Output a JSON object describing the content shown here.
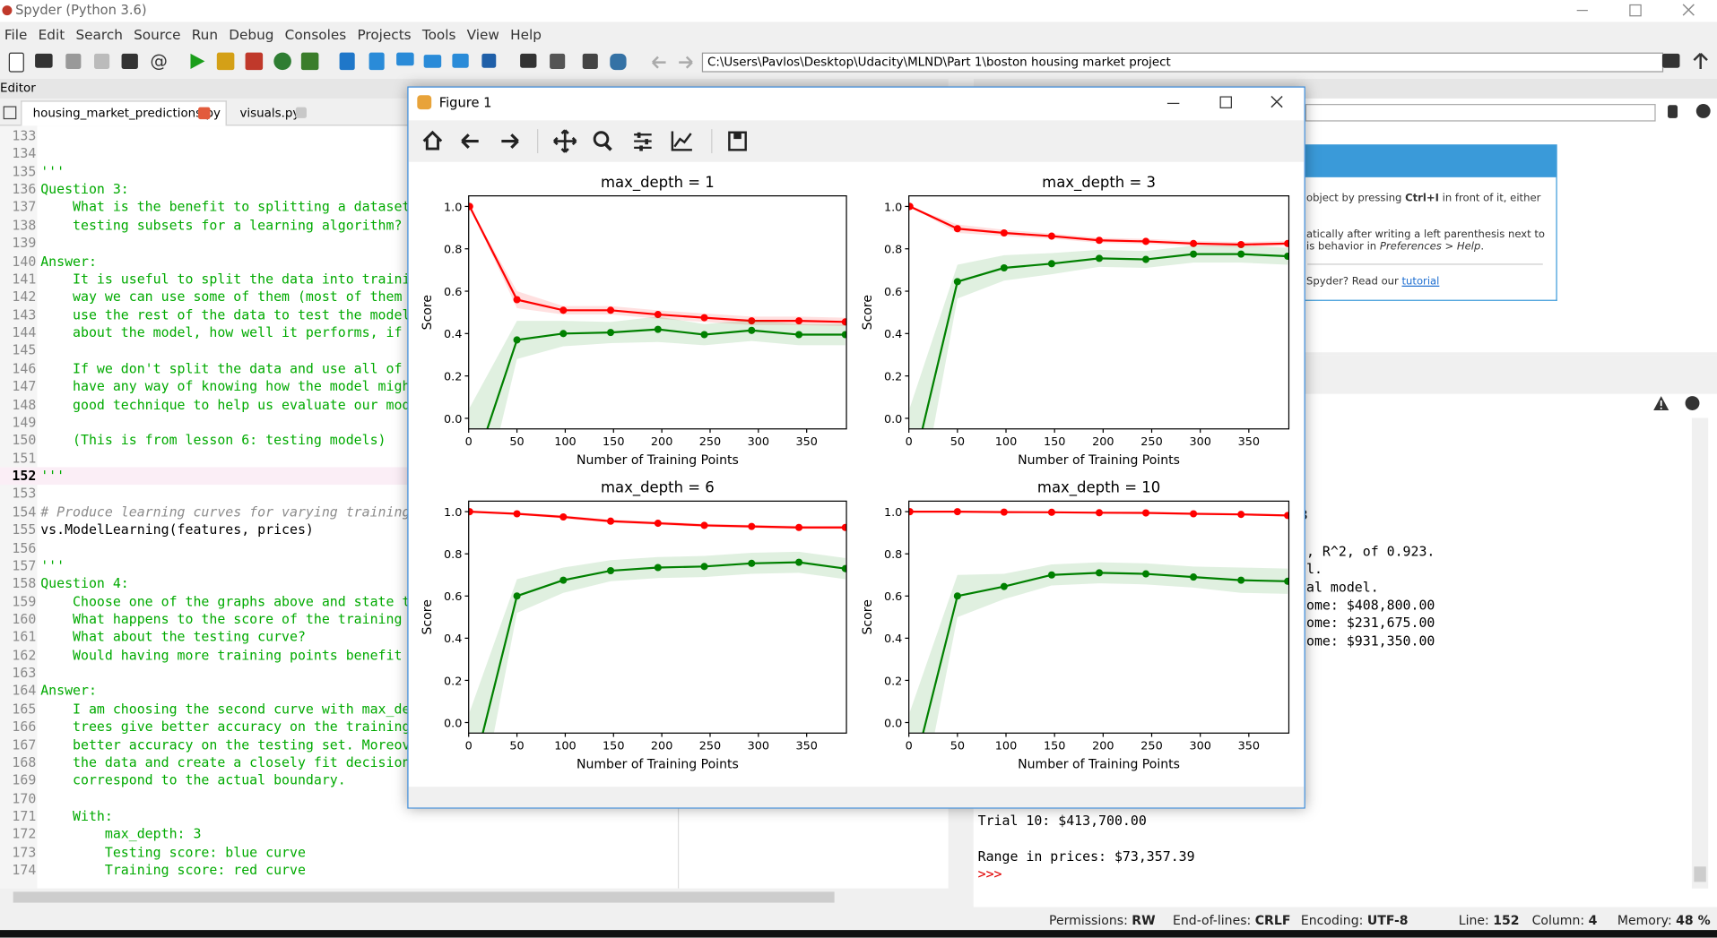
{
  "window": {
    "title": "Spyder (Python 3.6)"
  },
  "menu": [
    "File",
    "Edit",
    "Search",
    "Source",
    "Run",
    "Debug",
    "Consoles",
    "Projects",
    "Tools",
    "View",
    "Help"
  ],
  "toolbar": {
    "path": "C:\\Users\\Pavlos\\Desktop\\Udacity\\MLND\\Part 1\\boston housing market project"
  },
  "editor": {
    "label": "Editor",
    "tabs": [
      "housing_market_predictions.py",
      "visuals.py"
    ],
    "text_color": "#00aa00",
    "lines": [
      {
        "num": 133
      },
      {
        "num": 134
      },
      {
        "num": 135,
        "text": "'''"
      },
      {
        "num": 136,
        "text": "Question 3:"
      },
      {
        "num": 137,
        "text": "    What is the benefit to splitting a dataset"
      },
      {
        "num": 138,
        "text": "    testing subsets for a learning algorithm?"
      },
      {
        "num": 139
      },
      {
        "num": 140,
        "text": "Answer:"
      },
      {
        "num": 141,
        "text": "    It is useful to split the data into traini"
      },
      {
        "num": 142,
        "text": "    way we can use some of them (most of them"
      },
      {
        "num": 143,
        "text": "    use the rest of the data to test the model"
      },
      {
        "num": 144,
        "text": "    about the model, how well it performs, if"
      },
      {
        "num": 145
      },
      {
        "num": 146,
        "text": "    If we don't split the data and use all of"
      },
      {
        "num": 147,
        "text": "    have any way of knowing how the model migh"
      },
      {
        "num": 148,
        "text": "    good technique to help us evaluate our mod"
      },
      {
        "num": 149
      },
      {
        "num": 150,
        "text": "    (This is from lesson 6: testing models)"
      },
      {
        "num": 151
      },
      {
        "num": 152,
        "text": "'''"
      },
      {
        "num": 153
      },
      {
        "num": 154,
        "text": "# Produce learning curves for varying training",
        "color": "#8c8c8c",
        "italic": true
      },
      {
        "num": 155,
        "text": "vs.ModelLearning(features, prices)",
        "color": "#000000"
      },
      {
        "num": 156
      },
      {
        "num": 157,
        "text": "'''"
      },
      {
        "num": 158,
        "text": "Question 4:"
      },
      {
        "num": 159,
        "text": "    Choose one of the graphs above and state t"
      },
      {
        "num": 160,
        "text": "    What happens to the score of the training"
      },
      {
        "num": 161,
        "text": "    What about the testing curve?"
      },
      {
        "num": 162,
        "text": "    Would having more training points benefit"
      },
      {
        "num": 163
      },
      {
        "num": 164,
        "text": "Answer:"
      },
      {
        "num": 165,
        "text": "    I am choosing the second curve with max_de"
      },
      {
        "num": 166,
        "text": "    trees give better accuracy on the training"
      },
      {
        "num": 167,
        "text": "    better accuracy on the testing set. Moreov"
      },
      {
        "num": 168,
        "text": "    the data and create a closely fit decision"
      },
      {
        "num": 169,
        "text": "    correspond to the actual boundary."
      },
      {
        "num": 170
      },
      {
        "num": 171,
        "text": "    With:"
      },
      {
        "num": 172,
        "text": "        max_depth: 3"
      },
      {
        "num": 173,
        "text": "        Testing score: blue curve"
      },
      {
        "num": 174,
        "text": "        Training score: red curve"
      }
    ]
  },
  "help": {
    "lines": [
      [
        {
          "text": "object by pressing "
        },
        {
          "text": "Ctrl+I",
          "bold": true
        },
        {
          "text": " in front of it, either"
        }
      ],
      [
        {
          "text": "atically after writing a left parenthesis next to"
        }
      ],
      [
        {
          "text": "is behavior in "
        },
        {
          "text": "Preferences > Help",
          "italic": true
        },
        {
          "text": "."
        }
      ],
      [
        {
          "text": "Spyder? Read our "
        },
        {
          "text": "tutorial",
          "link": true
        }
      ]
    ]
  },
  "console": {
    "clipped_lines": [
      "3",
      null,
      ", R^2, of 0.923.",
      "l.",
      "al model.",
      "ome: $408,800.00",
      "ome: $231,675.00",
      "ome: $931,350.00"
    ],
    "lines": [
      "Trial 10: $413,700.00",
      null,
      "Range in prices: $73,357.39"
    ],
    "prompt": ">>>"
  },
  "figure": {
    "title": "Figure 1"
  },
  "status": [
    {
      "label": "Permissions:",
      "value": "RW"
    },
    {
      "label": "End-of-lines:",
      "value": "CRLF"
    },
    {
      "label": "Encoding:",
      "value": "UTF-8"
    },
    {
      "label": "Line:",
      "value": 152
    },
    {
      "label": "Column:",
      "value": 4
    },
    {
      "label": "Memory:",
      "value": "48 %"
    }
  ],
  "chart_data": [
    {
      "type": "line",
      "title": "max_depth = 1",
      "xlabel": "Number of Training Points",
      "ylabel": "Score",
      "x": [
        1,
        50,
        98,
        147,
        196,
        244,
        293,
        342,
        390
      ],
      "xlim": [
        0,
        391.2
      ],
      "ylim": [
        -0.05,
        1.05
      ],
      "xticks": [
        0,
        50,
        100,
        150,
        200,
        250,
        300,
        350
      ],
      "yticks": [
        {
          "value": 0,
          "label": "0.0"
        },
        0.2,
        0.4,
        0.6,
        0.8,
        {
          "value": 1,
          "label": "1.0"
        }
      ],
      "series": [
        {
          "color": "#ff0000",
          "values": [
            1.0,
            0.56,
            0.51,
            0.51,
            0.49,
            0.475,
            0.46,
            0.46,
            0.455
          ],
          "std": [
            0.0,
            0.04,
            0.02,
            0.02,
            0.02,
            0.02,
            0.02,
            0.02,
            0.02
          ]
        },
        {
          "color": "#008000",
          "values": [
            -0.3,
            0.37,
            0.4,
            0.405,
            0.42,
            0.395,
            0.415,
            0.395,
            0.395
          ],
          "std": [
            0.35,
            0.09,
            0.06,
            0.05,
            0.06,
            0.05,
            0.05,
            0.05,
            0.05
          ]
        }
      ]
    },
    {
      "type": "line",
      "title": "max_depth = 3",
      "xlabel": "Number of Training Points",
      "ylabel": "Score",
      "x": [
        1,
        50,
        98,
        147,
        196,
        244,
        293,
        342,
        390
      ],
      "xlim": [
        0,
        391.2
      ],
      "ylim": [
        -0.05,
        1.05
      ],
      "xticks": [
        0,
        50,
        100,
        150,
        200,
        250,
        300,
        350
      ],
      "yticks": [
        {
          "value": 0,
          "label": "0.0"
        },
        0.2,
        0.4,
        0.6,
        0.8,
        {
          "value": 1,
          "label": "1.0"
        }
      ],
      "series": [
        {
          "color": "#ff0000",
          "values": [
            1.0,
            0.895,
            0.875,
            0.86,
            0.84,
            0.835,
            0.825,
            0.82,
            0.825
          ],
          "std": [
            0.0,
            0.02,
            0.015,
            0.012,
            0.012,
            0.012,
            0.012,
            0.012,
            0.012
          ]
        },
        {
          "color": "#008000",
          "values": [
            -0.3,
            0.645,
            0.71,
            0.73,
            0.755,
            0.75,
            0.775,
            0.775,
            0.765
          ],
          "std": [
            0.35,
            0.08,
            0.06,
            0.05,
            0.04,
            0.04,
            0.04,
            0.04,
            0.04
          ]
        }
      ]
    },
    {
      "type": "line",
      "title": "max_depth = 6",
      "xlabel": "Number of Training Points",
      "ylabel": "Score",
      "x": [
        1,
        50,
        98,
        147,
        196,
        244,
        293,
        342,
        390
      ],
      "xlim": [
        0,
        391.2
      ],
      "ylim": [
        -0.05,
        1.05
      ],
      "xticks": [
        0,
        50,
        100,
        150,
        200,
        250,
        300,
        350
      ],
      "yticks": [
        {
          "value": 0,
          "label": "0.0"
        },
        0.2,
        0.4,
        0.6,
        0.8,
        {
          "value": 1,
          "label": "1.0"
        }
      ],
      "series": [
        {
          "color": "#ff0000",
          "values": [
            1.0,
            0.99,
            0.975,
            0.955,
            0.945,
            0.935,
            0.93,
            0.925,
            0.925
          ],
          "std": [
            0.0,
            0.005,
            0.008,
            0.008,
            0.008,
            0.008,
            0.008,
            0.008,
            0.008
          ]
        },
        {
          "color": "#008000",
          "values": [
            -0.3,
            0.6,
            0.675,
            0.72,
            0.735,
            0.74,
            0.755,
            0.76,
            0.73
          ],
          "std": [
            0.35,
            0.08,
            0.06,
            0.05,
            0.05,
            0.05,
            0.05,
            0.05,
            0.05
          ]
        }
      ]
    },
    {
      "type": "line",
      "title": "max_depth = 10",
      "xlabel": "Number of Training Points",
      "ylabel": "Score",
      "x": [
        1,
        50,
        98,
        147,
        196,
        244,
        293,
        342,
        390
      ],
      "xlim": [
        0,
        391.2
      ],
      "ylim": [
        -0.05,
        1.05
      ],
      "xticks": [
        0,
        50,
        100,
        150,
        200,
        250,
        300,
        350
      ],
      "yticks": [
        {
          "value": 0,
          "label": "0.0"
        },
        0.2,
        0.4,
        0.6,
        0.8,
        {
          "value": 1,
          "label": "1.0"
        }
      ],
      "series": [
        {
          "color": "#ff0000",
          "values": [
            1.0,
            1.0,
            0.998,
            0.997,
            0.995,
            0.994,
            0.99,
            0.987,
            0.982
          ],
          "std": [
            0.0,
            0.002,
            0.003,
            0.003,
            0.004,
            0.004,
            0.004,
            0.004,
            0.004
          ]
        },
        {
          "color": "#008000",
          "values": [
            -0.3,
            0.6,
            0.645,
            0.7,
            0.71,
            0.705,
            0.69,
            0.675,
            0.67
          ],
          "std": [
            0.35,
            0.1,
            0.06,
            0.05,
            0.05,
            0.05,
            0.05,
            0.06,
            0.06
          ]
        }
      ]
    }
  ]
}
